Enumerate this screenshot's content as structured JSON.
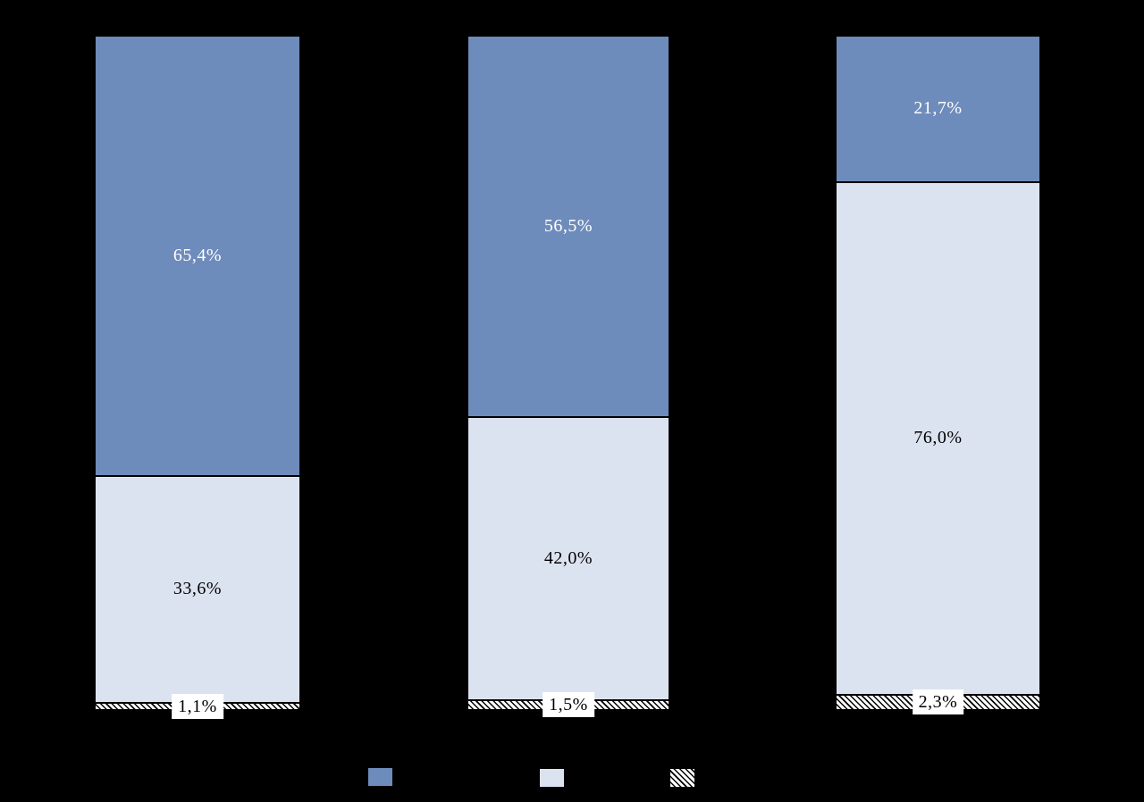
{
  "chart_data": {
    "type": "bar",
    "stacked": true,
    "percent_stacked": true,
    "background": "#000000",
    "ylim": [
      0,
      100
    ],
    "legend_position": "bottom",
    "categories": [
      "",
      "",
      ""
    ],
    "series": [
      {
        "key": "primary",
        "color": "#6E8CBB",
        "values": [
          65.4,
          56.5,
          21.7
        ],
        "labels": [
          "65,4%",
          "56,5%",
          "21,7%"
        ]
      },
      {
        "key": "secondary",
        "color": "#DCE3F0",
        "values": [
          33.6,
          42.0,
          76.0
        ],
        "labels": [
          "33,6%",
          "42,0%",
          "76,0%"
        ]
      },
      {
        "key": "hatched",
        "pattern": "diagonal-hatch",
        "color": "#FFFFFF",
        "values": [
          1.1,
          1.5,
          2.3
        ],
        "labels": [
          "1,1%",
          "1,5%",
          "2,3%"
        ]
      }
    ]
  }
}
